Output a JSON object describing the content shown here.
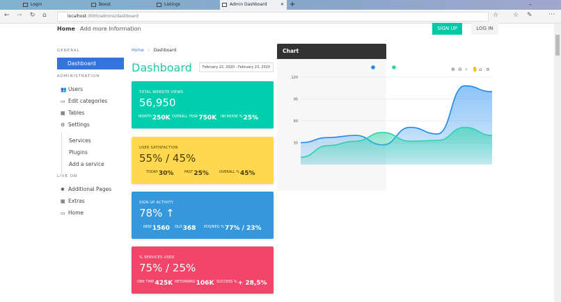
{
  "browser": {
    "tabs": [
      "Login",
      "Boost",
      "Listings",
      "Admin Dashboard"
    ],
    "url_host": "localhost",
    "url_path": ":3000/admins/dashboard"
  },
  "nav": {
    "home": "Home",
    "more": "Add more Information",
    "signup": "SIGN UP",
    "login": "LOG IN"
  },
  "sidebar": {
    "general": "GENERAL",
    "dashboard": "Dashboard",
    "administration": "ADMINISTRATION",
    "admin_items": [
      {
        "label": "Users",
        "icon": "users-icon"
      },
      {
        "label": "Edit categories",
        "icon": "monitor-icon"
      },
      {
        "label": "Tables",
        "icon": "table-icon"
      },
      {
        "label": "Settings",
        "icon": "gear-icon"
      }
    ],
    "settings_sub": [
      "Services",
      "Plugins",
      "Add a service"
    ],
    "live_on": "LIVE ON",
    "live_items": [
      {
        "label": "Additional Pages",
        "icon": "bug-icon"
      },
      {
        "label": "Extras",
        "icon": "grid-icon"
      },
      {
        "label": "Home",
        "icon": "laptop-icon"
      }
    ]
  },
  "breadcrumb": {
    "home": "Home",
    "sep": "/",
    "current": "Dashboard"
  },
  "page_title": "Dashboard",
  "date_range": "February 22, 2020 - February 23, 2020",
  "cards": [
    {
      "title": "TOTAL WEBSITE VIEWS",
      "value": "56,950",
      "color": "#00cfae",
      "stats": [
        {
          "label": "MONTH",
          "value": "250K"
        },
        {
          "label": "OVERALL YEAR",
          "value": "750K"
        },
        {
          "label": "INCREASE %",
          "value": "25%"
        }
      ]
    },
    {
      "title": "USER SATISFACTION",
      "value": "55% / 45%",
      "color": "#ffd84f",
      "stats": [
        {
          "label": "TODAY",
          "value": "30%"
        },
        {
          "label": "PAST",
          "value": "25%"
        },
        {
          "label": "OVERALL %",
          "value": "45%"
        }
      ]
    },
    {
      "title": "SIGN UP ACTIVITY",
      "value": "78% ↑",
      "color": "#3598dc",
      "stats": [
        {
          "label": "NEW",
          "value": "1560"
        },
        {
          "label": "OLD",
          "value": "368"
        },
        {
          "label": "POS/NEG %",
          "value": "77% / 23%"
        }
      ]
    },
    {
      "title": "% SERVICES USED",
      "value": "75% / 25%",
      "color": "#f3456a",
      "stats": [
        {
          "label": "ONE TIME",
          "value": "425K"
        },
        {
          "label": "RETURNING",
          "value": "106K"
        },
        {
          "label": "SUCCESS %",
          "value": "+ 28,5%"
        }
      ]
    }
  ],
  "chart_panel": {
    "title": "Chart",
    "toolbar_icons": [
      "zoom-in-icon",
      "zoom-out-icon",
      "magnifier-icon",
      "pan-hand-icon",
      "home-icon",
      "menu-icon"
    ]
  },
  "chart_data": {
    "type": "area",
    "ylim": [
      0,
      120
    ],
    "yticks": [
      "30",
      "60",
      "90",
      "120"
    ],
    "grid": true,
    "legend": "top-center",
    "series": [
      {
        "color": "#1a88f0",
        "values": [
          30,
          37,
          40,
          27,
          51,
          42,
          108,
          100
        ]
      },
      {
        "color": "#2ad3a8",
        "values": [
          10,
          26,
          32,
          44,
          32,
          33,
          51,
          40
        ]
      }
    ]
  }
}
